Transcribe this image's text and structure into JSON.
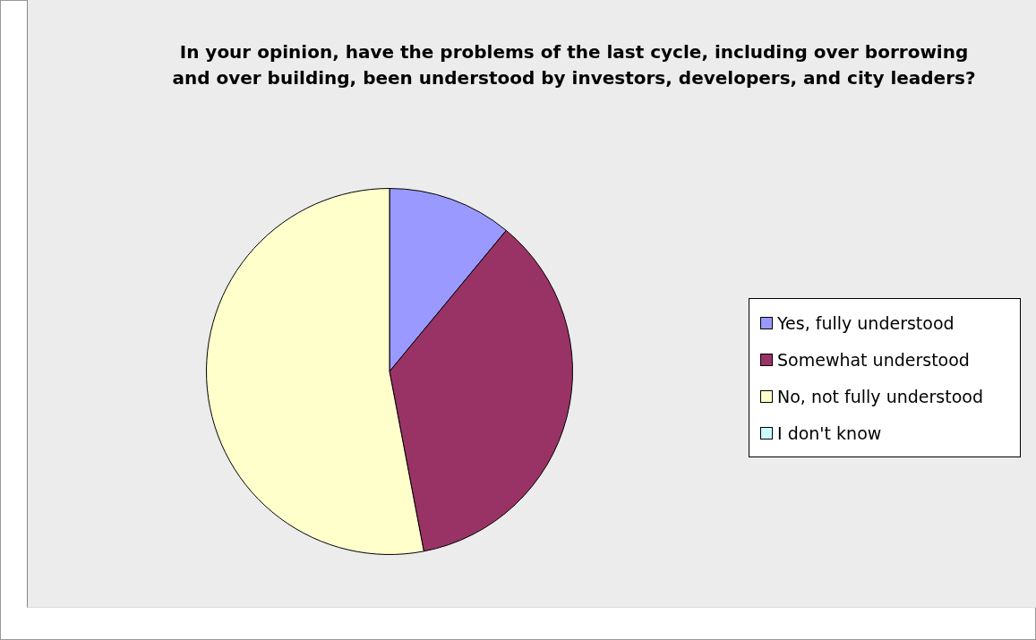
{
  "chart_data": {
    "type": "pie",
    "title": "In your opinion, have the problems of the last cycle, including over borrowing and over building, been understood by investors, developers, and city leaders?",
    "categories": [
      "Yes, fully understood",
      "Somewhat understood",
      "No, not fully understood",
      "I don't know"
    ],
    "values": [
      11,
      36,
      53,
      0
    ],
    "colors": [
      "#9999ff",
      "#993366",
      "#ffffcc",
      "#ccffff"
    ],
    "legend": "right"
  }
}
